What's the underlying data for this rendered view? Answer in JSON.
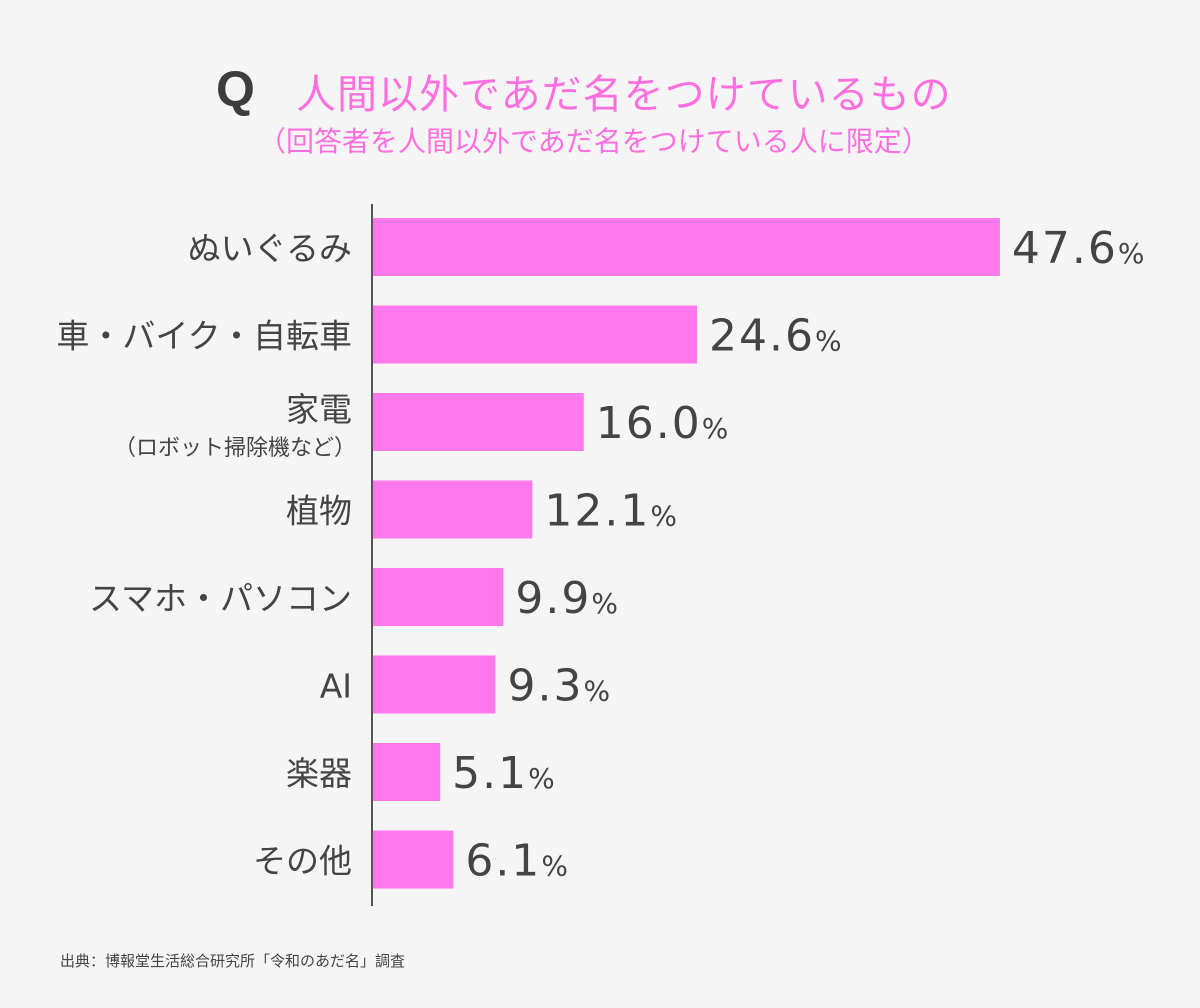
{
  "chart_data": {
    "type": "bar",
    "orientation": "horizontal",
    "q_mark": "Q",
    "title": "人間以外であだ名をつけているもの",
    "subtitle": "（回答者を人間以外であだ名をつけている人に限定）",
    "categories": [
      "ぬいぐるみ",
      "車・バイク・自転車",
      "家電",
      "植物",
      "スマホ・パソコン",
      "AI",
      "楽器",
      "その他"
    ],
    "category_notes": [
      "",
      "",
      "（ロボット掃除機など）",
      "",
      "",
      "",
      "",
      ""
    ],
    "values": [
      47.6,
      24.6,
      16.0,
      12.1,
      9.9,
      9.3,
      5.1,
      6.1
    ],
    "value_labels": [
      "47.6",
      "24.6",
      "16.0",
      "12.1",
      "9.9",
      "9.3",
      "5.1",
      "6.1"
    ],
    "unit": "%",
    "xlim": [
      0,
      50
    ],
    "grid": false,
    "bar_color": "#ff78ec",
    "source": "出典：博報堂生活総合研究所「令和のあだ名」調査"
  }
}
